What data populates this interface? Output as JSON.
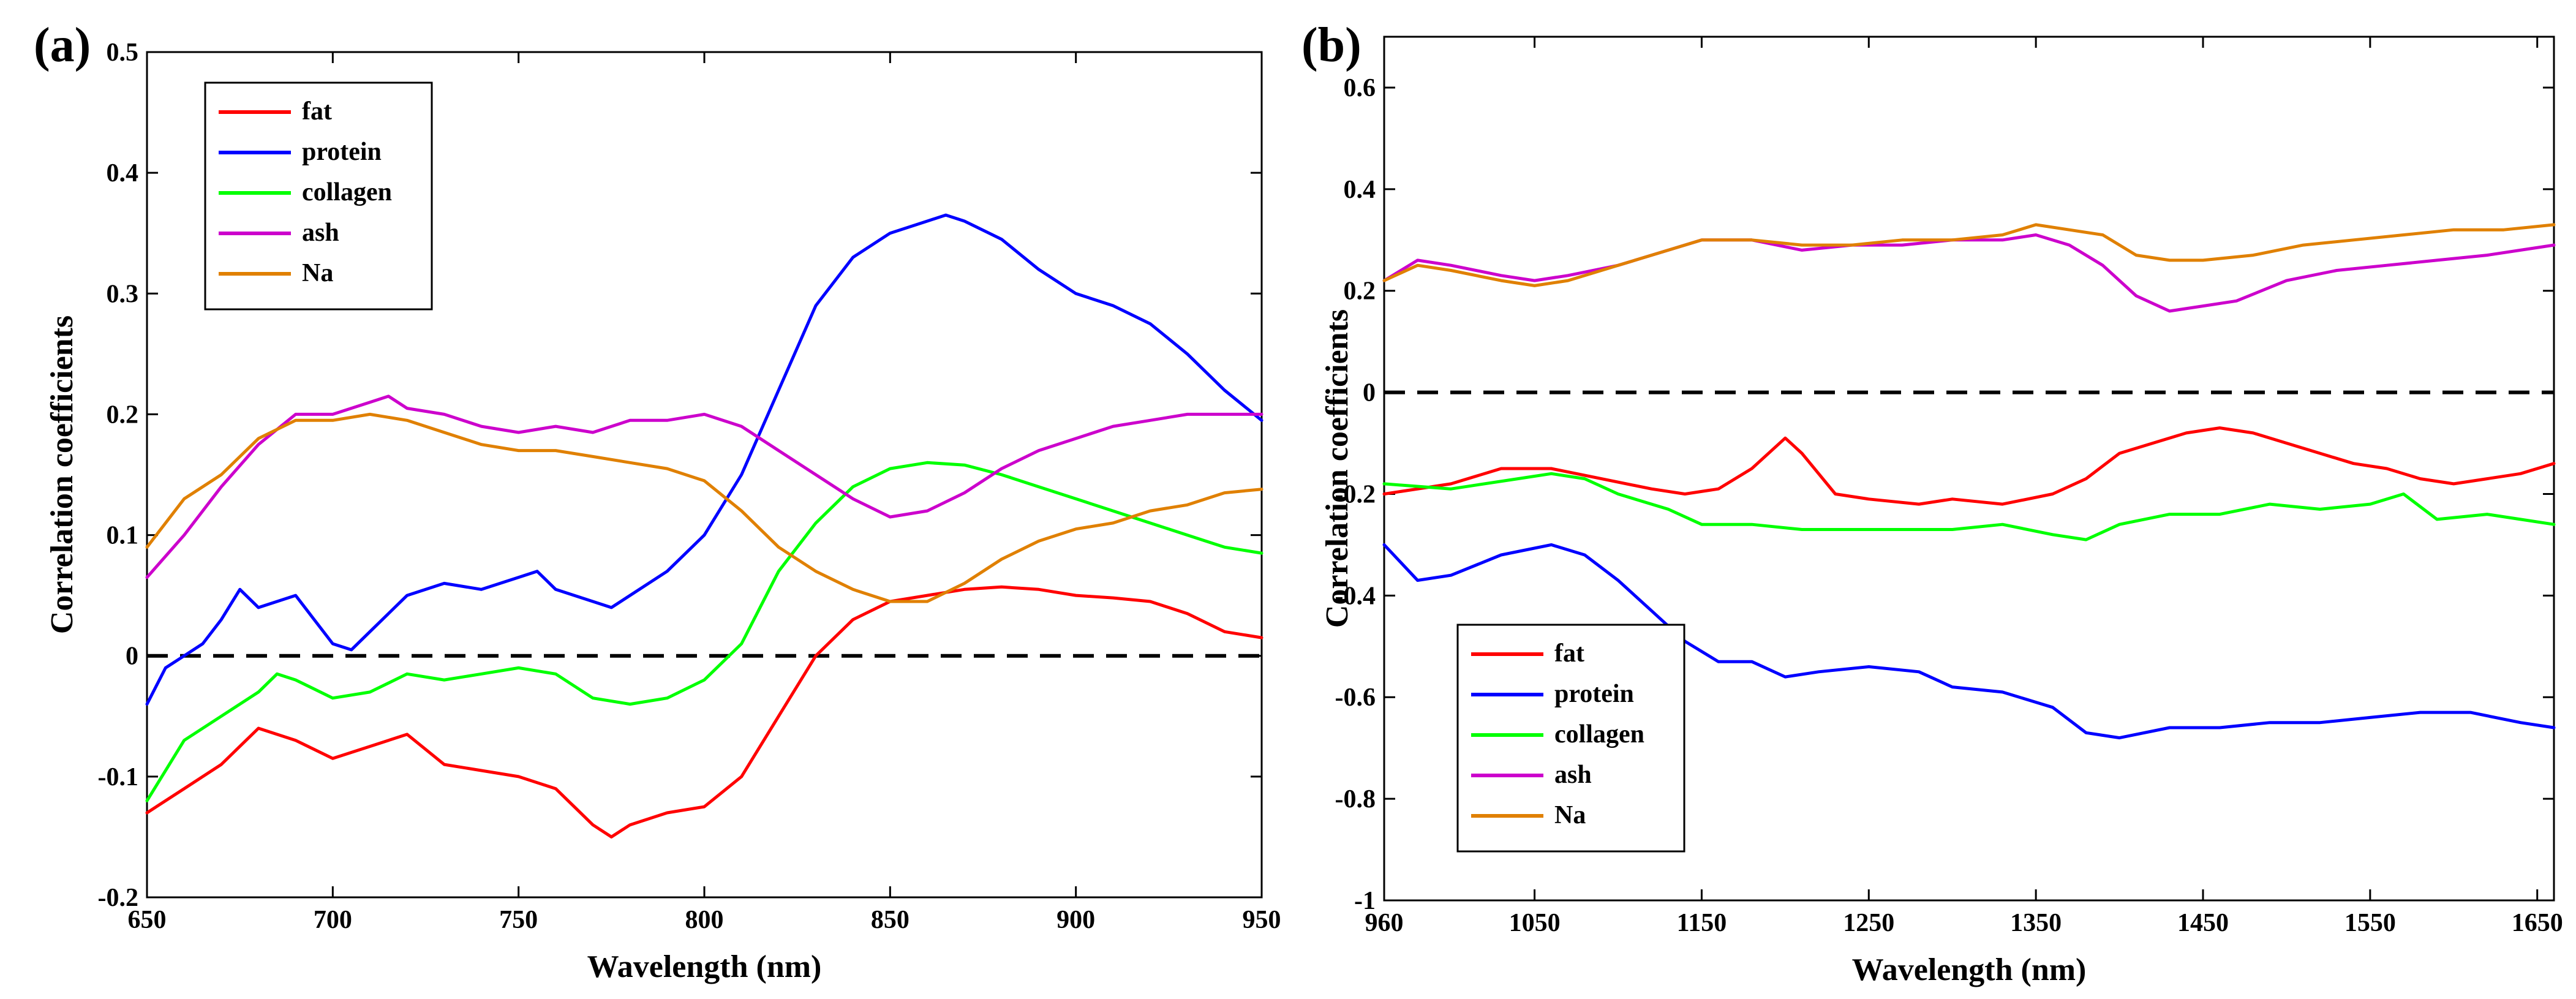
{
  "chart_data": [
    {
      "type": "line",
      "panel_label": "(a)",
      "xlabel": "Wavelength (nm)",
      "ylabel": "Correlation coefficients",
      "xlim": [
        650,
        950
      ],
      "ylim": [
        -0.2,
        0.5
      ],
      "xticks": [
        650,
        700,
        750,
        800,
        850,
        900,
        950
      ],
      "xtick_labels": [
        "650",
        "700",
        "750",
        "800",
        "850",
        "900",
        "950"
      ],
      "yticks": [
        -0.2,
        -0.1,
        0,
        0.1,
        0.2,
        0.3,
        0.4,
        0.5
      ],
      "ytick_labels": [
        "-0.2",
        "-0.1",
        "0",
        "0.1",
        "0.2",
        "0.3",
        "0.4",
        "0.5"
      ],
      "reference_line": 0,
      "legend_position": "top-left",
      "series": [
        {
          "name": "fat",
          "color": "#ff0000",
          "x": [
            650,
            660,
            670,
            680,
            690,
            700,
            710,
            720,
            730,
            740,
            750,
            760,
            770,
            775,
            780,
            790,
            800,
            810,
            820,
            830,
            840,
            850,
            860,
            870,
            880,
            890,
            900,
            910,
            920,
            930,
            940,
            950
          ],
          "y": [
            -0.13,
            -0.11,
            -0.09,
            -0.06,
            -0.07,
            -0.085,
            -0.075,
            -0.065,
            -0.09,
            -0.095,
            -0.1,
            -0.11,
            -0.14,
            -0.15,
            -0.14,
            -0.13,
            -0.125,
            -0.1,
            -0.05,
            0,
            0.03,
            0.045,
            0.05,
            0.055,
            0.057,
            0.055,
            0.05,
            0.048,
            0.045,
            0.035,
            0.02,
            0.015
          ]
        },
        {
          "name": "protein",
          "color": "#0000ff",
          "x": [
            650,
            655,
            660,
            665,
            670,
            675,
            680,
            690,
            695,
            700,
            705,
            710,
            720,
            730,
            740,
            750,
            755,
            760,
            770,
            775,
            780,
            790,
            800,
            810,
            820,
            830,
            840,
            850,
            860,
            865,
            870,
            880,
            890,
            900,
            910,
            920,
            930,
            940,
            950
          ],
          "y": [
            -0.04,
            -0.01,
            0.0,
            0.01,
            0.03,
            0.055,
            0.04,
            0.05,
            0.03,
            0.01,
            0.005,
            0.02,
            0.05,
            0.06,
            0.055,
            0.065,
            0.07,
            0.055,
            0.045,
            0.04,
            0.05,
            0.07,
            0.1,
            0.15,
            0.22,
            0.29,
            0.33,
            0.35,
            0.36,
            0.365,
            0.36,
            0.345,
            0.32,
            0.3,
            0.29,
            0.275,
            0.25,
            0.22,
            0.195
          ]
        },
        {
          "name": "collagen",
          "color": "#00ff00",
          "x": [
            650,
            660,
            670,
            680,
            685,
            690,
            700,
            710,
            720,
            730,
            740,
            750,
            760,
            770,
            780,
            790,
            800,
            810,
            820,
            830,
            840,
            850,
            860,
            870,
            880,
            890,
            900,
            910,
            920,
            930,
            940,
            950
          ],
          "y": [
            -0.12,
            -0.07,
            -0.05,
            -0.03,
            -0.015,
            -0.02,
            -0.035,
            -0.03,
            -0.015,
            -0.02,
            -0.015,
            -0.01,
            -0.015,
            -0.035,
            -0.04,
            -0.035,
            -0.02,
            0.01,
            0.07,
            0.11,
            0.14,
            0.155,
            0.16,
            0.158,
            0.15,
            0.14,
            0.13,
            0.12,
            0.11,
            0.1,
            0.09,
            0.085
          ]
        },
        {
          "name": "ash",
          "color": "#cc00cc",
          "x": [
            650,
            660,
            670,
            680,
            690,
            700,
            710,
            715,
            720,
            730,
            740,
            750,
            760,
            770,
            780,
            790,
            800,
            810,
            820,
            830,
            840,
            850,
            860,
            870,
            880,
            890,
            900,
            910,
            920,
            930,
            940,
            950
          ],
          "y": [
            0.065,
            0.1,
            0.14,
            0.175,
            0.2,
            0.2,
            0.21,
            0.215,
            0.205,
            0.2,
            0.19,
            0.185,
            0.19,
            0.185,
            0.195,
            0.195,
            0.2,
            0.19,
            0.17,
            0.15,
            0.13,
            0.115,
            0.12,
            0.135,
            0.155,
            0.17,
            0.18,
            0.19,
            0.195,
            0.2,
            0.2,
            0.2
          ]
        },
        {
          "name": "Na",
          "color": "#e08000",
          "x": [
            650,
            660,
            670,
            680,
            690,
            700,
            710,
            720,
            730,
            740,
            750,
            760,
            770,
            780,
            790,
            800,
            810,
            820,
            830,
            840,
            850,
            860,
            870,
            880,
            890,
            900,
            910,
            920,
            930,
            940,
            950
          ],
          "y": [
            0.09,
            0.13,
            0.15,
            0.18,
            0.195,
            0.195,
            0.2,
            0.195,
            0.185,
            0.175,
            0.17,
            0.17,
            0.165,
            0.16,
            0.155,
            0.145,
            0.12,
            0.09,
            0.07,
            0.055,
            0.045,
            0.045,
            0.06,
            0.08,
            0.095,
            0.105,
            0.11,
            0.12,
            0.125,
            0.135,
            0.138
          ]
        }
      ]
    },
    {
      "type": "line",
      "panel_label": "(b)",
      "xlabel": "Wavelength (nm)",
      "ylabel": "Correlation coefficients",
      "xlim": [
        960,
        1660
      ],
      "ylim": [
        -1,
        0.7
      ],
      "xticks": [
        960,
        1050,
        1150,
        1250,
        1350,
        1450,
        1550,
        1650
      ],
      "xtick_labels": [
        "960",
        "1050",
        "1150",
        "1250",
        "1350",
        "1450",
        "1550",
        "1650"
      ],
      "yticks": [
        -1,
        -0.8,
        -0.6,
        -0.4,
        -0.2,
        0,
        0.2,
        0.4,
        0.6
      ],
      "ytick_labels": [
        "-1",
        "-0.8",
        "-0.6",
        "-0.4",
        "-0.2",
        "0",
        "0.2",
        "0.4",
        "0.6"
      ],
      "reference_line": 0,
      "legend_position": "bottom-left",
      "series": [
        {
          "name": "fat",
          "color": "#ff0000",
          "x": [
            960,
            1000,
            1030,
            1060,
            1090,
            1120,
            1140,
            1160,
            1180,
            1200,
            1210,
            1230,
            1250,
            1280,
            1300,
            1330,
            1360,
            1380,
            1400,
            1420,
            1440,
            1460,
            1480,
            1500,
            1520,
            1540,
            1560,
            1580,
            1600,
            1620,
            1640,
            1660
          ],
          "y": [
            -0.2,
            -0.18,
            -0.15,
            -0.15,
            -0.17,
            -0.19,
            -0.2,
            -0.19,
            -0.15,
            -0.09,
            -0.12,
            -0.2,
            -0.21,
            -0.22,
            -0.21,
            -0.22,
            -0.2,
            -0.17,
            -0.12,
            -0.1,
            -0.08,
            -0.07,
            -0.08,
            -0.1,
            -0.12,
            -0.14,
            -0.15,
            -0.17,
            -0.18,
            -0.17,
            -0.16,
            -0.14
          ]
        },
        {
          "name": "protein",
          "color": "#0000ff",
          "x": [
            960,
            980,
            1000,
            1030,
            1060,
            1080,
            1100,
            1120,
            1140,
            1160,
            1180,
            1200,
            1220,
            1250,
            1280,
            1300,
            1330,
            1360,
            1380,
            1400,
            1430,
            1460,
            1490,
            1520,
            1550,
            1580,
            1610,
            1640,
            1660
          ],
          "y": [
            -0.3,
            -0.37,
            -0.36,
            -0.32,
            -0.3,
            -0.32,
            -0.37,
            -0.43,
            -0.49,
            -0.53,
            -0.53,
            -0.56,
            -0.55,
            -0.54,
            -0.55,
            -0.58,
            -0.59,
            -0.62,
            -0.67,
            -0.68,
            -0.66,
            -0.66,
            -0.65,
            -0.65,
            -0.64,
            -0.63,
            -0.63,
            -0.65,
            -0.66
          ]
        },
        {
          "name": "collagen",
          "color": "#00ff00",
          "x": [
            960,
            1000,
            1040,
            1060,
            1080,
            1100,
            1130,
            1150,
            1180,
            1210,
            1240,
            1270,
            1300,
            1330,
            1360,
            1380,
            1400,
            1430,
            1460,
            1490,
            1520,
            1550,
            1570,
            1590,
            1620,
            1640,
            1660
          ],
          "y": [
            -0.18,
            -0.19,
            -0.17,
            -0.16,
            -0.17,
            -0.2,
            -0.23,
            -0.26,
            -0.26,
            -0.27,
            -0.27,
            -0.27,
            -0.27,
            -0.26,
            -0.28,
            -0.29,
            -0.26,
            -0.24,
            -0.24,
            -0.22,
            -0.23,
            -0.22,
            -0.2,
            -0.25,
            -0.24,
            -0.25,
            -0.26
          ]
        },
        {
          "name": "ash",
          "color": "#cc00cc",
          "x": [
            960,
            980,
            1000,
            1030,
            1050,
            1070,
            1100,
            1130,
            1150,
            1180,
            1210,
            1240,
            1270,
            1300,
            1330,
            1350,
            1370,
            1390,
            1410,
            1430,
            1450,
            1470,
            1500,
            1530,
            1560,
            1590,
            1620,
            1640,
            1660
          ],
          "y": [
            0.22,
            0.26,
            0.25,
            0.23,
            0.22,
            0.23,
            0.25,
            0.28,
            0.3,
            0.3,
            0.28,
            0.29,
            0.29,
            0.3,
            0.3,
            0.31,
            0.29,
            0.25,
            0.19,
            0.16,
            0.17,
            0.18,
            0.22,
            0.24,
            0.25,
            0.26,
            0.27,
            0.28,
            0.29
          ]
        },
        {
          "name": "Na",
          "color": "#e08000",
          "x": [
            960,
            980,
            1000,
            1030,
            1050,
            1070,
            1100,
            1130,
            1150,
            1180,
            1210,
            1240,
            1270,
            1300,
            1330,
            1350,
            1370,
            1390,
            1410,
            1430,
            1450,
            1480,
            1510,
            1540,
            1570,
            1600,
            1630,
            1660
          ],
          "y": [
            0.22,
            0.25,
            0.24,
            0.22,
            0.21,
            0.22,
            0.25,
            0.28,
            0.3,
            0.3,
            0.29,
            0.29,
            0.3,
            0.3,
            0.31,
            0.33,
            0.32,
            0.31,
            0.27,
            0.26,
            0.26,
            0.27,
            0.29,
            0.3,
            0.31,
            0.32,
            0.32,
            0.33
          ]
        }
      ]
    }
  ]
}
